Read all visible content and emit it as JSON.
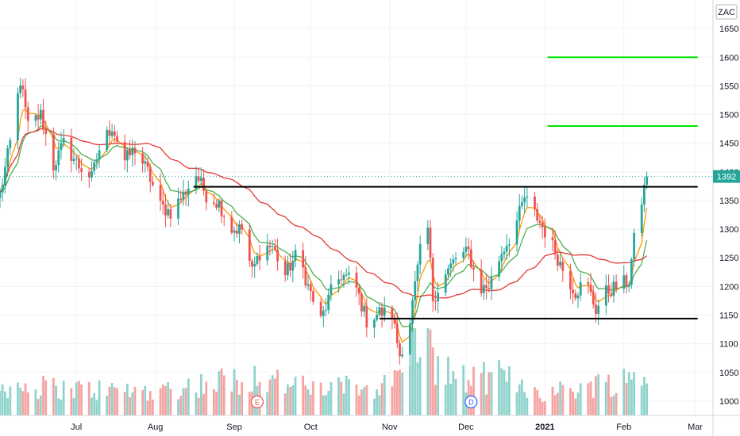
{
  "symbol_badge": "ZAC",
  "last_price_label": "1392",
  "colors": {
    "up": "#26a69a",
    "down": "#ef5350",
    "vol_up": "#8fd3cc",
    "vol_down": "#f5a3a1",
    "ema_fast": "#ff9800",
    "ema_mid": "#4caf50",
    "sma_slow": "#e53935",
    "target_line": "#00e600",
    "level_line": "#000000",
    "price_tag": "#26a69a",
    "earnings_marker": "#ef5350",
    "dividend_marker": "#2962ff"
  },
  "markers": [
    {
      "date": "2020-09-10",
      "letter": "E",
      "kind": "earnings"
    },
    {
      "date": "2020-12-03",
      "letter": "D",
      "kind": "dividend"
    }
  ],
  "chart_data": {
    "type": "candlestick",
    "title": "",
    "xlabel": "",
    "ylabel": "",
    "ylim": [
      975,
      1700
    ],
    "yticks": [
      1000,
      1050,
      1100,
      1150,
      1200,
      1250,
      1300,
      1350,
      1400,
      1450,
      1500,
      1550,
      1600,
      1650
    ],
    "xticks": [
      {
        "label": "Jul",
        "date": "2020-07-01",
        "bold": false
      },
      {
        "label": "Aug",
        "date": "2020-08-01",
        "bold": false
      },
      {
        "label": "Sep",
        "date": "2020-09-01",
        "bold": false
      },
      {
        "label": "Oct",
        "date": "2020-10-01",
        "bold": false
      },
      {
        "label": "Nov",
        "date": "2020-11-01",
        "bold": false
      },
      {
        "label": "Dec",
        "date": "2020-12-01",
        "bold": false
      },
      {
        "label": "2021",
        "date": "2021-01-01",
        "bold": true
      },
      {
        "label": "Feb",
        "date": "2021-02-01",
        "bold": false
      },
      {
        "label": "Mar",
        "date": "2021-03-01",
        "bold": false
      }
    ],
    "last_price": 1392,
    "horizontal_levels": [
      {
        "name": "target-upper",
        "value": 1600,
        "from": "2021-01-02",
        "to": "2021-03-02",
        "color": "#00e600"
      },
      {
        "name": "target-lower",
        "value": 1480,
        "from": "2021-01-02",
        "to": "2021-03-02",
        "color": "#00e600"
      },
      {
        "name": "resistance",
        "value": 1374,
        "from": "2020-08-16",
        "to": "2021-03-02",
        "color": "#000000"
      },
      {
        "name": "support",
        "value": 1144,
        "from": "2020-10-28",
        "to": "2021-03-02",
        "color": "#000000"
      }
    ],
    "anchor_closes": [
      [
        "2020-06-01",
        1360
      ],
      [
        "2020-06-05",
        1450
      ],
      [
        "2020-06-09",
        1560
      ],
      [
        "2020-06-12",
        1480
      ],
      [
        "2020-06-17",
        1500
      ],
      [
        "2020-06-22",
        1410
      ],
      [
        "2020-06-26",
        1450
      ],
      [
        "2020-07-02",
        1410
      ],
      [
        "2020-07-07",
        1390
      ],
      [
        "2020-07-10",
        1440
      ],
      [
        "2020-07-15",
        1480
      ],
      [
        "2020-07-20",
        1420
      ],
      [
        "2020-07-24",
        1440
      ],
      [
        "2020-07-29",
        1400
      ],
      [
        "2020-08-03",
        1340
      ],
      [
        "2020-08-07",
        1330
      ],
      [
        "2020-08-12",
        1360
      ],
      [
        "2020-08-17",
        1395
      ],
      [
        "2020-08-21",
        1360
      ],
      [
        "2020-08-26",
        1345
      ],
      [
        "2020-08-31",
        1300
      ],
      [
        "2020-09-04",
        1300
      ],
      [
        "2020-09-08",
        1225
      ],
      [
        "2020-09-12",
        1270
      ],
      [
        "2020-09-16",
        1270
      ],
      [
        "2020-09-21",
        1220
      ],
      [
        "2020-09-26",
        1260
      ],
      [
        "2020-09-30",
        1200
      ],
      [
        "2020-10-05",
        1140
      ],
      [
        "2020-10-09",
        1190
      ],
      [
        "2020-10-13",
        1220
      ],
      [
        "2020-10-18",
        1210
      ],
      [
        "2020-10-23",
        1140
      ],
      [
        "2020-10-28",
        1155
      ],
      [
        "2020-11-02",
        1150
      ],
      [
        "2020-11-05",
        1080
      ],
      [
        "2020-11-09",
        1140
      ],
      [
        "2020-11-13",
        1260
      ],
      [
        "2020-11-16",
        1300
      ],
      [
        "2020-11-18",
        1180
      ],
      [
        "2020-11-23",
        1220
      ],
      [
        "2020-11-27",
        1250
      ],
      [
        "2020-12-02",
        1260
      ],
      [
        "2020-12-06",
        1195
      ],
      [
        "2020-12-10",
        1200
      ],
      [
        "2020-12-15",
        1260
      ],
      [
        "2020-12-20",
        1300
      ],
      [
        "2020-12-24",
        1355
      ],
      [
        "2020-12-29",
        1320
      ],
      [
        "2021-01-03",
        1280
      ],
      [
        "2021-01-08",
        1230
      ],
      [
        "2021-01-13",
        1190
      ],
      [
        "2021-01-17",
        1210
      ],
      [
        "2021-01-21",
        1160
      ],
      [
        "2021-01-25",
        1190
      ],
      [
        "2021-01-29",
        1200
      ],
      [
        "2021-02-03",
        1210
      ],
      [
        "2021-02-05",
        1280
      ],
      [
        "2021-02-08",
        1350
      ],
      [
        "2021-02-10",
        1392
      ]
    ],
    "volume_anchors": [
      [
        "2020-06-01",
        0.35
      ],
      [
        "2020-07-01",
        0.3
      ],
      [
        "2020-08-01",
        0.28
      ],
      [
        "2020-09-10",
        0.45
      ],
      [
        "2020-10-01",
        0.3
      ],
      [
        "2020-11-02",
        0.35
      ],
      [
        "2020-11-13",
        1.0
      ],
      [
        "2020-11-20",
        0.55
      ],
      [
        "2020-12-01",
        0.4
      ],
      [
        "2020-12-15",
        0.45
      ],
      [
        "2021-01-01",
        0.25
      ],
      [
        "2021-01-20",
        0.35
      ],
      [
        "2021-02-10",
        0.45
      ]
    ]
  }
}
